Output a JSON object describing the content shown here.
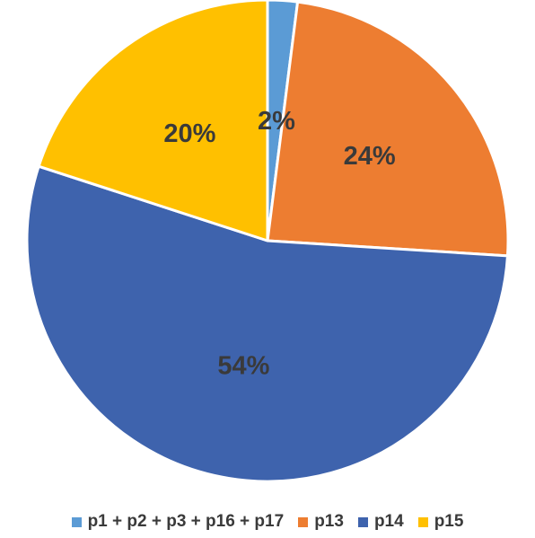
{
  "chart_data": {
    "type": "pie",
    "title": "",
    "categories": [
      "p1 + p2 + p3 + p16 + p17",
      "p13",
      "p14",
      "p15"
    ],
    "values": [
      2,
      24,
      54,
      20
    ],
    "data_labels": [
      "2%",
      "24%",
      "54%",
      "20%"
    ],
    "colors": [
      "#5b9bd5",
      "#ed7d31",
      "#3e63ad",
      "#ffc000"
    ],
    "start_angle_deg": 0,
    "direction": "clockwise",
    "legend_position": "bottom"
  }
}
